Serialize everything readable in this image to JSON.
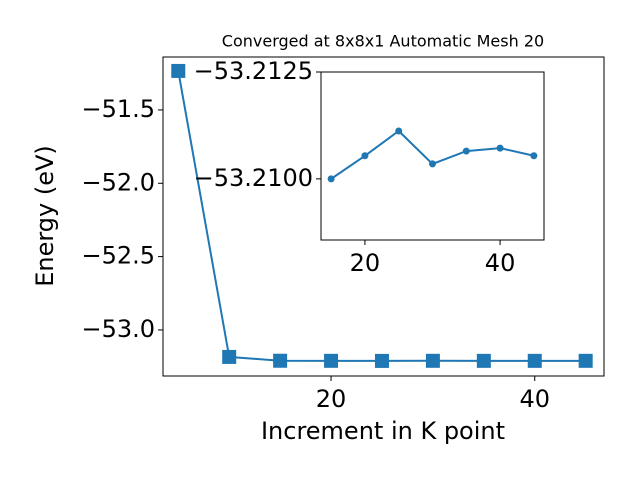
{
  "chart_data": [
    {
      "type": "line",
      "title": "Converged at 8x8x1 Automatic Mesh 20",
      "x_label": "Increment in K point",
      "y_label": "Energy (eV)",
      "x": [
        5,
        10,
        15,
        20,
        25,
        30,
        35,
        40,
        45
      ],
      "series": [
        {
          "color": "#1f77b4",
          "marker": "square",
          "values": [
            -51.234,
            -53.184,
            -53.21,
            -53.2105,
            -53.2111,
            -53.2104,
            -53.2107,
            -53.2107,
            -53.2105
          ]
        }
      ],
      "xlim": [
        3.5,
        46.8
      ],
      "ylim": [
        -53.314,
        -51.139
      ],
      "xticks": [
        20,
        40
      ],
      "yticks": [
        {
          "value": -53.0,
          "label": "−53.0"
        },
        {
          "value": -52.5,
          "label": "−52.5"
        },
        {
          "value": -52.0,
          "label": "−52.0"
        },
        {
          "value": -51.5,
          "label": "−51.5"
        }
      ]
    },
    {
      "type": "line",
      "x": [
        15,
        20,
        25,
        30,
        35,
        40,
        45
      ],
      "series": [
        {
          "color": "#1f77b4",
          "marker": "circle",
          "values": [
            -53.21,
            -53.21054,
            -53.21112,
            -53.21035,
            -53.21065,
            -53.21072,
            -53.21054
          ]
        }
      ],
      "xlim": [
        13.5,
        46.5
      ],
      "ylim": [
        -53.20857,
        -53.2125
      ],
      "xticks": [
        20,
        40
      ],
      "yticks": [
        {
          "value": -53.2125,
          "label": "−53.2125"
        },
        {
          "value": -53.21,
          "label": "−53.2100"
        }
      ]
    }
  ]
}
